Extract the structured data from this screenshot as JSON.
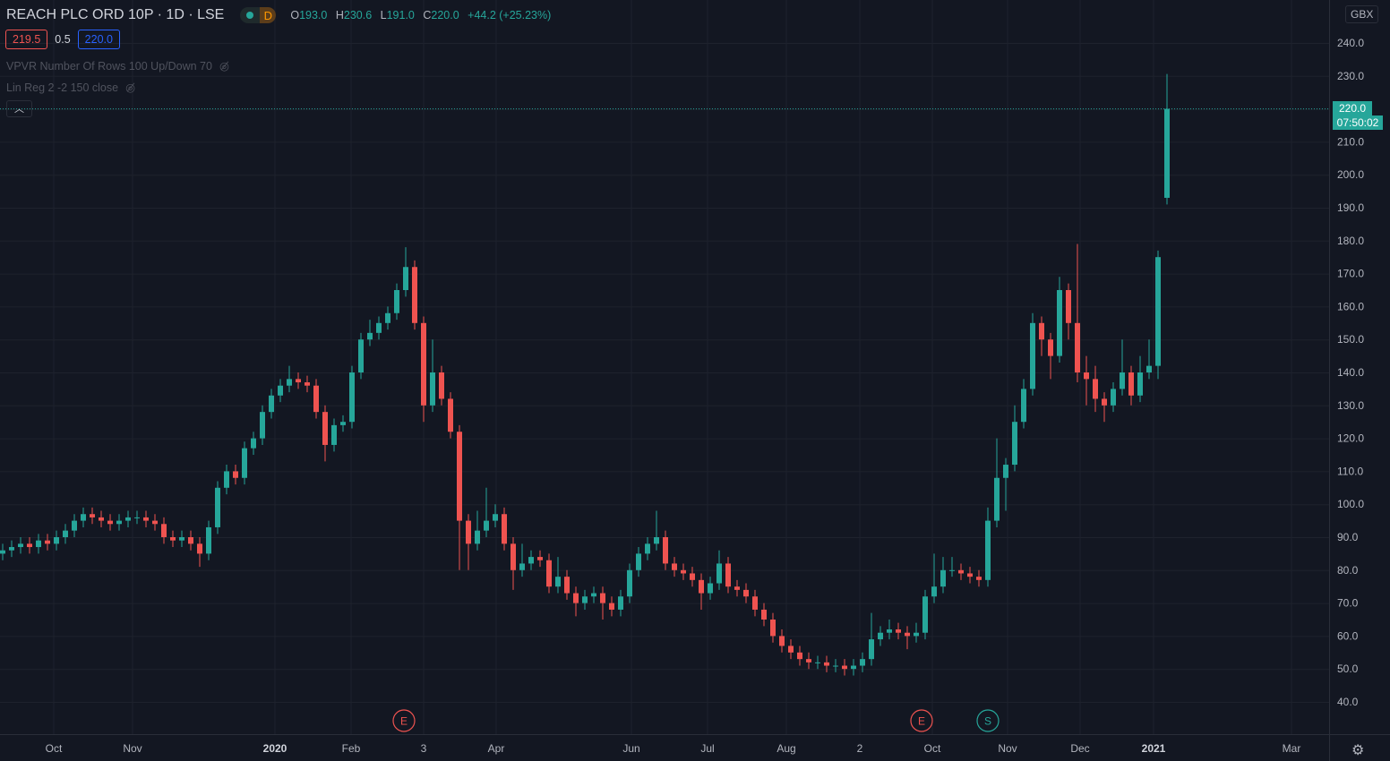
{
  "header": {
    "title": "REACH PLC ORD 10P · 1D · LSE",
    "interval_badge": "D",
    "open_label": "O",
    "open": "193.0",
    "high_label": "H",
    "high": "230.6",
    "low_label": "L",
    "low": "191.0",
    "close_label": "C",
    "close": "220.0",
    "change": "+44.2 (+25.23%)"
  },
  "quote": {
    "bid": "219.5",
    "spread": "0.5",
    "ask": "220.0"
  },
  "indicators": [
    {
      "label": "VPVR Number Of Rows 100 Up/Down 70",
      "icon": "eye-off-icon"
    },
    {
      "label": "Lin Reg 2 -2 150 close",
      "icon": "eye-off-icon"
    }
  ],
  "price_axis": {
    "currency": "GBX",
    "current_price": "220.0",
    "countdown": "07:50:02"
  },
  "colors": {
    "background": "#131722",
    "grid": "#1e222d",
    "up": "#26a69a",
    "down": "#ef5350",
    "text": "#b2b5be"
  },
  "chart_data": {
    "type": "candlestick",
    "symbol": "REACH PLC ORD 10P",
    "interval": "1D",
    "exchange": "LSE",
    "ylim": [
      40,
      240
    ],
    "y_ticks": [
      40,
      50,
      60,
      70,
      80,
      90,
      100,
      110,
      120,
      130,
      140,
      150,
      160,
      170,
      180,
      190,
      200,
      210,
      220,
      230,
      240
    ],
    "x_ticks": [
      "Oct",
      "Nov",
      "2020",
      "Feb",
      "3",
      "Apr",
      "Jun",
      "Jul",
      "Aug",
      "2",
      "Oct",
      "Nov",
      "Dec",
      "2021",
      "Mar"
    ],
    "grid": true,
    "events": [
      {
        "label": "E",
        "type": "earnings"
      },
      {
        "label": "E",
        "type": "earnings"
      },
      {
        "label": "S",
        "type": "split"
      }
    ],
    "ohlc": [
      [
        85,
        88,
        83,
        86
      ],
      [
        86,
        89,
        84,
        87
      ],
      [
        87,
        90,
        85,
        88
      ],
      [
        88,
        90,
        85,
        87
      ],
      [
        87,
        91,
        85,
        89
      ],
      [
        89,
        91,
        86,
        88
      ],
      [
        88,
        92,
        86,
        90
      ],
      [
        90,
        94,
        88,
        92
      ],
      [
        92,
        97,
        90,
        95
      ],
      [
        95,
        99,
        93,
        97
      ],
      [
        97,
        99,
        94,
        96
      ],
      [
        96,
        98,
        93,
        95
      ],
      [
        95,
        97,
        92,
        94
      ],
      [
        94,
        97,
        92,
        95
      ],
      [
        95,
        98,
        93,
        96
      ],
      [
        96,
        98,
        94,
        96
      ],
      [
        96,
        98,
        93,
        95
      ],
      [
        95,
        97,
        92,
        94
      ],
      [
        94,
        96,
        88,
        90
      ],
      [
        90,
        92,
        87,
        89
      ],
      [
        89,
        92,
        87,
        90
      ],
      [
        90,
        92,
        86,
        88
      ],
      [
        88,
        90,
        81,
        85
      ],
      [
        85,
        95,
        83,
        93
      ],
      [
        93,
        107,
        91,
        105
      ],
      [
        105,
        112,
        103,
        110
      ],
      [
        110,
        112,
        106,
        108
      ],
      [
        108,
        119,
        106,
        117
      ],
      [
        117,
        122,
        115,
        120
      ],
      [
        120,
        130,
        118,
        128
      ],
      [
        128,
        135,
        126,
        133
      ],
      [
        133,
        138,
        131,
        136
      ],
      [
        136,
        142,
        134,
        138
      ],
      [
        138,
        140,
        135,
        137
      ],
      [
        137,
        139,
        134,
        136
      ],
      [
        136,
        138,
        126,
        128
      ],
      [
        128,
        130,
        113,
        118
      ],
      [
        118,
        126,
        116,
        124
      ],
      [
        124,
        127,
        122,
        125
      ],
      [
        125,
        142,
        123,
        140
      ],
      [
        140,
        152,
        138,
        150
      ],
      [
        150,
        156,
        148,
        152
      ],
      [
        152,
        157,
        150,
        155
      ],
      [
        155,
        160,
        153,
        158
      ],
      [
        158,
        167,
        156,
        165
      ],
      [
        165,
        178,
        163,
        172
      ],
      [
        172,
        174,
        153,
        155
      ],
      [
        155,
        157,
        125,
        130
      ],
      [
        130,
        150,
        128,
        140
      ],
      [
        140,
        142,
        130,
        132
      ],
      [
        132,
        134,
        120,
        122
      ],
      [
        122,
        124,
        80,
        95
      ],
      [
        95,
        97,
        80,
        88
      ],
      [
        88,
        98,
        86,
        92
      ],
      [
        92,
        105,
        90,
        95
      ],
      [
        95,
        100,
        93,
        97
      ],
      [
        97,
        99,
        86,
        88
      ],
      [
        88,
        90,
        74,
        80
      ],
      [
        80,
        88,
        78,
        82
      ],
      [
        82,
        86,
        80,
        84
      ],
      [
        84,
        86,
        81,
        83
      ],
      [
        83,
        85,
        73,
        75
      ],
      [
        75,
        84,
        73,
        78
      ],
      [
        78,
        80,
        71,
        73
      ],
      [
        73,
        75,
        66,
        70
      ],
      [
        70,
        74,
        68,
        72
      ],
      [
        72,
        75,
        70,
        73
      ],
      [
        73,
        75,
        65,
        70
      ],
      [
        70,
        72,
        66,
        68
      ],
      [
        68,
        74,
        66,
        72
      ],
      [
        72,
        82,
        70,
        80
      ],
      [
        80,
        87,
        78,
        85
      ],
      [
        85,
        90,
        83,
        88
      ],
      [
        88,
        98,
        86,
        90
      ],
      [
        90,
        92,
        80,
        82
      ],
      [
        82,
        84,
        78,
        80
      ],
      [
        80,
        82,
        77,
        79
      ],
      [
        79,
        81,
        75,
        77
      ],
      [
        77,
        79,
        68,
        73
      ],
      [
        73,
        78,
        71,
        76
      ],
      [
        76,
        86,
        74,
        82
      ],
      [
        82,
        84,
        73,
        75
      ],
      [
        75,
        77,
        72,
        74
      ],
      [
        74,
        76,
        70,
        72
      ],
      [
        72,
        74,
        66,
        68
      ],
      [
        68,
        70,
        63,
        65
      ],
      [
        65,
        67,
        58,
        60
      ],
      [
        60,
        62,
        55,
        57
      ],
      [
        57,
        59,
        53,
        55
      ],
      [
        55,
        57,
        51,
        53
      ],
      [
        53,
        55,
        50,
        52
      ],
      [
        52,
        54,
        50,
        52
      ],
      [
        52,
        54,
        49,
        51
      ],
      [
        51,
        53,
        49,
        51
      ],
      [
        51,
        53,
        48,
        50
      ],
      [
        50,
        53,
        48,
        51
      ],
      [
        51,
        55,
        49,
        53
      ],
      [
        53,
        67,
        51,
        59
      ],
      [
        59,
        63,
        57,
        61
      ],
      [
        61,
        65,
        59,
        62
      ],
      [
        62,
        64,
        59,
        61
      ],
      [
        61,
        63,
        56,
        60
      ],
      [
        60,
        64,
        58,
        61
      ],
      [
        61,
        74,
        59,
        72
      ],
      [
        72,
        85,
        70,
        75
      ],
      [
        75,
        84,
        73,
        80
      ],
      [
        80,
        84,
        78,
        80
      ],
      [
        80,
        82,
        77,
        79
      ],
      [
        79,
        81,
        76,
        78
      ],
      [
        78,
        80,
        75,
        77
      ],
      [
        77,
        99,
        75,
        95
      ],
      [
        95,
        120,
        93,
        108
      ],
      [
        108,
        114,
        98,
        112
      ],
      [
        112,
        130,
        110,
        125
      ],
      [
        125,
        138,
        123,
        135
      ],
      [
        135,
        158,
        133,
        155
      ],
      [
        155,
        157,
        145,
        150
      ],
      [
        150,
        152,
        138,
        145
      ],
      [
        145,
        169,
        143,
        165
      ],
      [
        165,
        167,
        150,
        155
      ],
      [
        155,
        179,
        137,
        140
      ],
      [
        140,
        145,
        130,
        138
      ],
      [
        138,
        142,
        128,
        132
      ],
      [
        132,
        134,
        125,
        130
      ],
      [
        130,
        137,
        128,
        135
      ],
      [
        135,
        150,
        133,
        140
      ],
      [
        140,
        142,
        130,
        133
      ],
      [
        133,
        145,
        131,
        140
      ],
      [
        140,
        150,
        138,
        142
      ],
      [
        142,
        177,
        138,
        175
      ],
      [
        193,
        230.6,
        191,
        220
      ]
    ]
  }
}
